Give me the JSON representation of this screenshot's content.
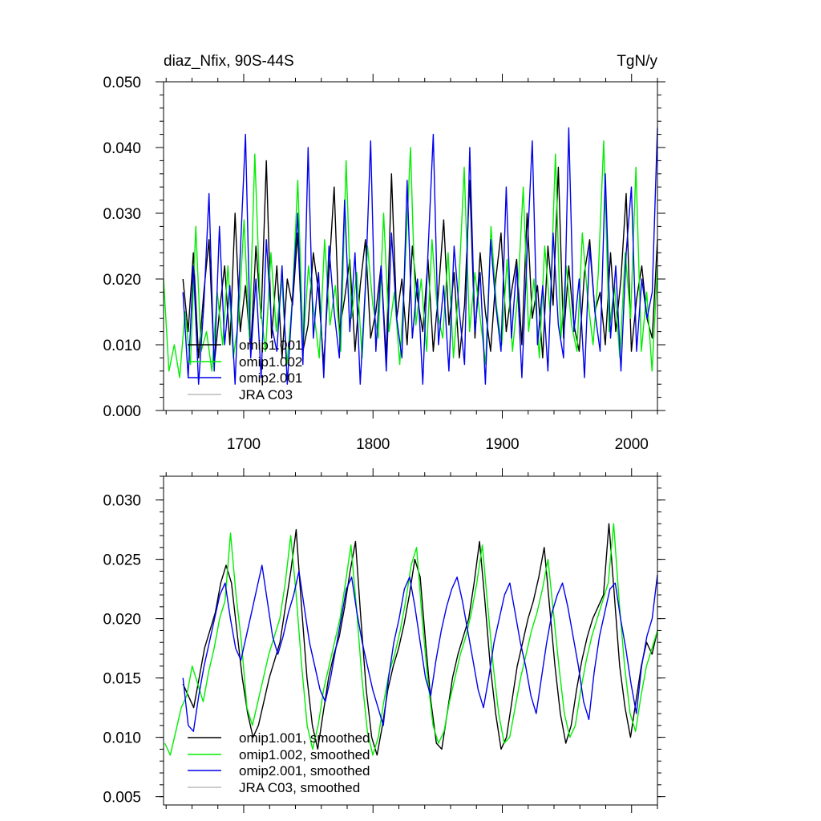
{
  "colors": {
    "omip1_001": "#000000",
    "omip1_002": "#00ee00",
    "omip2_001": "#0000ee",
    "jra_c03": "#bbbbbb"
  },
  "chart_data": [
    {
      "type": "line",
      "title_left": "diaz_Nfix, 90S-44S",
      "title_right": "TgN/y",
      "xlabel": "",
      "ylabel": "",
      "xlim": [
        1638,
        2020
      ],
      "ylim": [
        0.0,
        0.05
      ],
      "x_major_ticks": [
        1700,
        1800,
        1900,
        2000
      ],
      "x_tick_labels": [
        "1700",
        "1800",
        "1900",
        "2000"
      ],
      "y_major_ticks": [
        0.0,
        0.01,
        0.02,
        0.03,
        0.04,
        0.05
      ],
      "y_tick_labels": [
        "0.000",
        "0.010",
        "0.020",
        "0.030",
        "0.040",
        "0.050"
      ],
      "legend": [
        "omip1.001",
        "omip1.002",
        "omip2.001",
        "JRA C03"
      ],
      "legend_location": "bottom-left",
      "series": [
        {
          "name": "omip1.001",
          "color_key": "omip1_001",
          "x_start": 1653,
          "x_end": 2020,
          "values": [
            0.02,
            0.012,
            0.024,
            0.008,
            0.018,
            0.026,
            0.007,
            0.015,
            0.022,
            0.01,
            0.03,
            0.012,
            0.019,
            0.009,
            0.025,
            0.014,
            0.038,
            0.011,
            0.022,
            0.008,
            0.02,
            0.016,
            0.027,
            0.009,
            0.013,
            0.024,
            0.018,
            0.007,
            0.021,
            0.034,
            0.012,
            0.017,
            0.023,
            0.009,
            0.019,
            0.026,
            0.011,
            0.015,
            0.022,
            0.008,
            0.036,
            0.014,
            0.02,
            0.01,
            0.025,
            0.017,
            0.012,
            0.023,
            0.009,
            0.018,
            0.029,
            0.013,
            0.021,
            0.008,
            0.016,
            0.035,
            0.011,
            0.024,
            0.015,
            0.009,
            0.02,
            0.027,
            0.012,
            0.018,
            0.023,
            0.01,
            0.03,
            0.014,
            0.019,
            0.008,
            0.025,
            0.016,
            0.037,
            0.011,
            0.022,
            0.013,
            0.009,
            0.021,
            0.026,
            0.015,
            0.018,
            0.01,
            0.024,
            0.012,
            0.02,
            0.033,
            0.009,
            0.017,
            0.022,
            0.014,
            0.011,
            0.026
          ]
        },
        {
          "name": "omip1.002",
          "color_key": "omip1_002",
          "x_start": 1638,
          "x_end": 2020,
          "values": [
            0.02,
            0.006,
            0.01,
            0.005,
            0.015,
            0.007,
            0.028,
            0.009,
            0.012,
            0.006,
            0.018,
            0.01,
            0.022,
            0.008,
            0.014,
            0.029,
            0.011,
            0.039,
            0.016,
            0.009,
            0.024,
            0.012,
            0.02,
            0.007,
            0.017,
            0.035,
            0.01,
            0.022,
            0.015,
            0.008,
            0.026,
            0.013,
            0.019,
            0.009,
            0.038,
            0.014,
            0.021,
            0.008,
            0.025,
            0.016,
            0.011,
            0.03,
            0.012,
            0.018,
            0.007,
            0.022,
            0.04,
            0.013,
            0.02,
            0.009,
            0.026,
            0.015,
            0.011,
            0.024,
            0.008,
            0.019,
            0.037,
            0.012,
            0.021,
            0.014,
            0.007,
            0.028,
            0.016,
            0.01,
            0.023,
            0.009,
            0.018,
            0.034,
            0.012,
            0.02,
            0.008,
            0.025,
            0.015,
            0.039,
            0.011,
            0.022,
            0.013,
            0.009,
            0.027,
            0.017,
            0.01,
            0.021,
            0.041,
            0.012,
            0.019,
            0.008,
            0.024,
            0.014,
            0.037,
            0.009,
            0.018,
            0.006,
            0.022
          ]
        },
        {
          "name": "omip2.001",
          "color_key": "omip2_001",
          "x_start": 1653,
          "x_end": 2020,
          "values": [
            0.018,
            0.005,
            0.022,
            0.004,
            0.016,
            0.033,
            0.006,
            0.028,
            0.01,
            0.019,
            0.004,
            0.024,
            0.042,
            0.008,
            0.02,
            0.005,
            0.026,
            0.013,
            0.009,
            0.022,
            0.004,
            0.017,
            0.03,
            0.007,
            0.04,
            0.011,
            0.021,
            0.005,
            0.025,
            0.015,
            0.008,
            0.032,
            0.012,
            0.024,
            0.004,
            0.019,
            0.041,
            0.009,
            0.022,
            0.006,
            0.027,
            0.014,
            0.008,
            0.035,
            0.011,
            0.02,
            0.004,
            0.024,
            0.042,
            0.01,
            0.019,
            0.006,
            0.025,
            0.015,
            0.007,
            0.04,
            0.012,
            0.021,
            0.004,
            0.026,
            0.016,
            0.009,
            0.034,
            0.011,
            0.022,
            0.005,
            0.024,
            0.041,
            0.01,
            0.019,
            0.006,
            0.027,
            0.013,
            0.008,
            0.043,
            0.012,
            0.02,
            0.005,
            0.025,
            0.015,
            0.009,
            0.036,
            0.011,
            0.022,
            0.006,
            0.024,
            0.034,
            0.009,
            0.02,
            0.014,
            0.018,
            0.043
          ]
        },
        {
          "name": "JRA C03",
          "color_key": "jra_c03",
          "x_start": 2020,
          "x_end": 2020,
          "values": []
        }
      ]
    },
    {
      "type": "line",
      "title_left": "",
      "title_right": "",
      "xlabel": "",
      "ylabel": "",
      "xlim": [
        1638,
        2020
      ],
      "ylim": [
        0.0043,
        0.032
      ],
      "x_major_ticks": [
        1700,
        1800,
        1900,
        2000
      ],
      "x_tick_labels": [],
      "y_major_ticks": [
        0.005,
        0.01,
        0.015,
        0.02,
        0.025,
        0.03
      ],
      "y_tick_labels": [
        "0.005",
        "0.010",
        "0.015",
        "0.020",
        "0.025",
        "0.030"
      ],
      "legend": [
        "omip1.001, smoothed",
        "omip1.002, smoothed",
        "omip2.001, smoothed",
        "JRA C03, smoothed"
      ],
      "legend_location": "bottom-left",
      "series": [
        {
          "name": "omip1.001, smoothed",
          "color_key": "omip1_001",
          "x_start": 1653,
          "x_end": 2020,
          "values": [
            0.0145,
            0.0135,
            0.0125,
            0.015,
            0.0175,
            0.019,
            0.0205,
            0.023,
            0.0245,
            0.023,
            0.019,
            0.015,
            0.012,
            0.01,
            0.011,
            0.013,
            0.015,
            0.0165,
            0.018,
            0.021,
            0.024,
            0.0275,
            0.021,
            0.015,
            0.011,
            0.009,
            0.012,
            0.015,
            0.017,
            0.0185,
            0.021,
            0.024,
            0.0265,
            0.02,
            0.014,
            0.01,
            0.0085,
            0.011,
            0.014,
            0.016,
            0.0175,
            0.0195,
            0.022,
            0.025,
            0.0235,
            0.018,
            0.013,
            0.0095,
            0.009,
            0.012,
            0.015,
            0.017,
            0.0185,
            0.02,
            0.023,
            0.0265,
            0.0215,
            0.016,
            0.012,
            0.009,
            0.01,
            0.013,
            0.016,
            0.018,
            0.02,
            0.0215,
            0.0235,
            0.026,
            0.021,
            0.016,
            0.012,
            0.0095,
            0.011,
            0.014,
            0.0165,
            0.0185,
            0.02,
            0.021,
            0.022,
            0.028,
            0.022,
            0.016,
            0.0125,
            0.01,
            0.013,
            0.016,
            0.018,
            0.017,
            0.019
          ]
        },
        {
          "name": "omip1.002, smoothed",
          "color_key": "omip1_002",
          "x_start": 1639,
          "x_end": 2020,
          "values": [
            0.0095,
            0.0085,
            0.0105,
            0.0125,
            0.0135,
            0.016,
            0.0145,
            0.013,
            0.0155,
            0.0175,
            0.02,
            0.0215,
            0.0272,
            0.022,
            0.018,
            0.0125,
            0.011,
            0.013,
            0.015,
            0.017,
            0.0185,
            0.02,
            0.023,
            0.027,
            0.022,
            0.016,
            0.011,
            0.009,
            0.011,
            0.014,
            0.016,
            0.018,
            0.02,
            0.023,
            0.0262,
            0.021,
            0.015,
            0.0105,
            0.0085,
            0.01,
            0.013,
            0.0155,
            0.017,
            0.019,
            0.0215,
            0.0245,
            0.026,
            0.02,
            0.015,
            0.011,
            0.0095,
            0.0105,
            0.013,
            0.015,
            0.017,
            0.0185,
            0.0205,
            0.023,
            0.0262,
            0.021,
            0.016,
            0.012,
            0.0095,
            0.01,
            0.0125,
            0.015,
            0.017,
            0.019,
            0.0205,
            0.0225,
            0.025,
            0.0205,
            0.016,
            0.012,
            0.01,
            0.011,
            0.014,
            0.0165,
            0.0185,
            0.02,
            0.0215,
            0.023,
            0.028,
            0.0215,
            0.016,
            0.012,
            0.0105,
            0.0135,
            0.016,
            0.0175,
            0.019
          ]
        },
        {
          "name": "omip2.001, smoothed",
          "color_key": "omip2_001",
          "x_start": 1653,
          "x_end": 2020,
          "values": [
            0.015,
            0.011,
            0.0105,
            0.0135,
            0.016,
            0.018,
            0.02,
            0.022,
            0.023,
            0.02,
            0.0175,
            0.0165,
            0.0185,
            0.0205,
            0.0225,
            0.0245,
            0.0215,
            0.0185,
            0.017,
            0.0185,
            0.0205,
            0.022,
            0.024,
            0.021,
            0.018,
            0.016,
            0.014,
            0.013,
            0.015,
            0.0175,
            0.02,
            0.0225,
            0.0235,
            0.0205,
            0.018,
            0.016,
            0.014,
            0.0125,
            0.011,
            0.015,
            0.018,
            0.02,
            0.0225,
            0.0235,
            0.021,
            0.018,
            0.015,
            0.0135,
            0.0165,
            0.019,
            0.021,
            0.0225,
            0.0235,
            0.0215,
            0.019,
            0.0165,
            0.014,
            0.0125,
            0.015,
            0.018,
            0.02,
            0.022,
            0.023,
            0.0205,
            0.018,
            0.016,
            0.0135,
            0.012,
            0.015,
            0.018,
            0.0205,
            0.022,
            0.023,
            0.021,
            0.0185,
            0.016,
            0.013,
            0.0115,
            0.0155,
            0.0185,
            0.0205,
            0.0225,
            0.023,
            0.02,
            0.0175,
            0.0145,
            0.012,
            0.016,
            0.0185,
            0.02,
            0.0237
          ]
        },
        {
          "name": "JRA C03, smoothed",
          "color_key": "jra_c03",
          "x_start": 2020,
          "x_end": 2020,
          "values": []
        }
      ]
    }
  ]
}
